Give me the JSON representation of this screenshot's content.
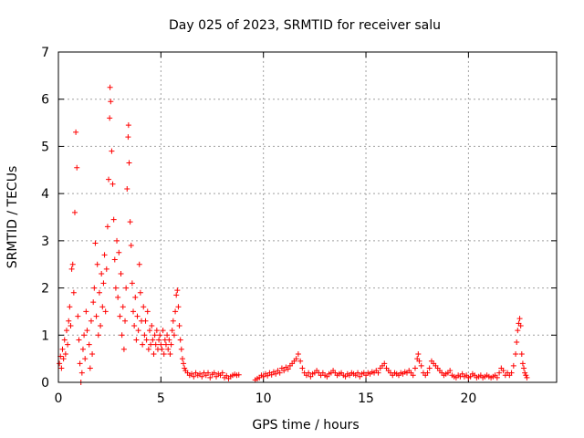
{
  "chart_data": {
    "type": "scatter",
    "title": "Day 025 of 2023, SRMTID for receiver salu",
    "xlabel": "GPS time / hours",
    "ylabel": "SRMTID / TECUs",
    "xlim": [
      0,
      24.3
    ],
    "ylim": [
      0,
      7
    ],
    "xticks": [
      0,
      5,
      10,
      15,
      20
    ],
    "yticks": [
      0,
      1,
      2,
      3,
      4,
      5,
      6,
      7
    ],
    "grid": true,
    "marker": "+",
    "color": "#ff0000",
    "series": [
      {
        "name": "SRMTID",
        "points": [
          [
            0.05,
            0.4
          ],
          [
            0.1,
            0.55
          ],
          [
            0.15,
            0.3
          ],
          [
            0.2,
            0.7
          ],
          [
            0.25,
            0.5
          ],
          [
            0.3,
            0.9
          ],
          [
            0.35,
            0.6
          ],
          [
            0.4,
            1.1
          ],
          [
            0.45,
            0.8
          ],
          [
            0.5,
            1.3
          ],
          [
            0.55,
            1.6
          ],
          [
            0.6,
            1.2
          ],
          [
            0.65,
            2.4
          ],
          [
            0.7,
            2.5
          ],
          [
            0.75,
            1.9
          ],
          [
            0.8,
            3.6
          ],
          [
            0.85,
            5.3
          ],
          [
            0.9,
            4.55
          ],
          [
            0.95,
            1.4
          ],
          [
            1.0,
            0.9
          ],
          [
            1.05,
            0.4
          ],
          [
            1.1,
            0.0
          ],
          [
            1.15,
            0.2
          ],
          [
            1.2,
            0.7
          ],
          [
            1.25,
            1.0
          ],
          [
            1.3,
            0.5
          ],
          [
            1.35,
            1.5
          ],
          [
            1.4,
            1.1
          ],
          [
            1.5,
            0.8
          ],
          [
            1.55,
            0.3
          ],
          [
            1.6,
            1.3
          ],
          [
            1.65,
            0.6
          ],
          [
            1.7,
            1.7
          ],
          [
            1.75,
            2.0
          ],
          [
            1.8,
            2.95
          ],
          [
            1.85,
            1.4
          ],
          [
            1.9,
            2.5
          ],
          [
            1.95,
            1.0
          ],
          [
            2.0,
            1.9
          ],
          [
            2.05,
            1.2
          ],
          [
            2.1,
            2.3
          ],
          [
            2.15,
            1.6
          ],
          [
            2.2,
            2.1
          ],
          [
            2.25,
            2.7
          ],
          [
            2.3,
            1.5
          ],
          [
            2.35,
            2.4
          ],
          [
            2.4,
            3.3
          ],
          [
            2.45,
            4.3
          ],
          [
            2.5,
            5.6
          ],
          [
            2.52,
            6.25
          ],
          [
            2.55,
            5.95
          ],
          [
            2.6,
            4.9
          ],
          [
            2.65,
            4.2
          ],
          [
            2.7,
            3.45
          ],
          [
            2.75,
            2.6
          ],
          [
            2.8,
            2.0
          ],
          [
            2.85,
            3.0
          ],
          [
            2.9,
            1.8
          ],
          [
            2.95,
            2.75
          ],
          [
            3.0,
            1.4
          ],
          [
            3.05,
            2.3
          ],
          [
            3.1,
            1.0
          ],
          [
            3.15,
            1.6
          ],
          [
            3.2,
            0.7
          ],
          [
            3.25,
            1.3
          ],
          [
            3.3,
            2.0
          ],
          [
            3.35,
            4.1
          ],
          [
            3.4,
            5.2
          ],
          [
            3.42,
            5.45
          ],
          [
            3.45,
            4.65
          ],
          [
            3.5,
            3.4
          ],
          [
            3.55,
            2.9
          ],
          [
            3.6,
            2.1
          ],
          [
            3.65,
            1.5
          ],
          [
            3.7,
            1.2
          ],
          [
            3.75,
            1.8
          ],
          [
            3.8,
            0.9
          ],
          [
            3.85,
            1.4
          ],
          [
            3.9,
            1.1
          ],
          [
            3.95,
            2.5
          ],
          [
            4.0,
            1.9
          ],
          [
            4.05,
            1.3
          ],
          [
            4.1,
            0.8
          ],
          [
            4.15,
            1.6
          ],
          [
            4.2,
            1.0
          ],
          [
            4.25,
            1.3
          ],
          [
            4.3,
            0.9
          ],
          [
            4.35,
            1.5
          ],
          [
            4.4,
            0.7
          ],
          [
            4.45,
            1.1
          ],
          [
            4.5,
            0.8
          ],
          [
            4.55,
            1.2
          ],
          [
            4.6,
            0.9
          ],
          [
            4.65,
            0.6
          ],
          [
            4.7,
            1.0
          ],
          [
            4.75,
            0.8
          ],
          [
            4.8,
            1.1
          ],
          [
            4.85,
            0.7
          ],
          [
            4.9,
            0.9
          ],
          [
            4.95,
            1.0
          ],
          [
            5.0,
            0.8
          ],
          [
            5.05,
            0.7
          ],
          [
            5.1,
            1.1
          ],
          [
            5.15,
            0.6
          ],
          [
            5.2,
            0.9
          ],
          [
            5.25,
            0.8
          ],
          [
            5.3,
            1.0
          ],
          [
            5.35,
            0.7
          ],
          [
            5.4,
            0.9
          ],
          [
            5.45,
            0.6
          ],
          [
            5.5,
            0.8
          ],
          [
            5.55,
            1.1
          ],
          [
            5.6,
            1.3
          ],
          [
            5.65,
            1.0
          ],
          [
            5.7,
            1.5
          ],
          [
            5.75,
            1.85
          ],
          [
            5.8,
            1.95
          ],
          [
            5.85,
            1.6
          ],
          [
            5.9,
            1.2
          ],
          [
            5.95,
            0.9
          ],
          [
            6.0,
            0.7
          ],
          [
            6.05,
            0.5
          ],
          [
            6.1,
            0.4
          ],
          [
            6.15,
            0.3
          ],
          [
            6.2,
            0.25
          ],
          [
            6.3,
            0.2
          ],
          [
            6.4,
            0.15
          ],
          [
            6.5,
            0.18
          ],
          [
            6.6,
            0.12
          ],
          [
            6.7,
            0.2
          ],
          [
            6.8,
            0.15
          ],
          [
            6.9,
            0.18
          ],
          [
            7.0,
            0.12
          ],
          [
            7.1,
            0.2
          ],
          [
            7.2,
            0.15
          ],
          [
            7.3,
            0.2
          ],
          [
            7.4,
            0.1
          ],
          [
            7.5,
            0.17
          ],
          [
            7.6,
            0.2
          ],
          [
            7.7,
            0.12
          ],
          [
            7.8,
            0.18
          ],
          [
            7.9,
            0.15
          ],
          [
            8.0,
            0.2
          ],
          [
            8.1,
            0.1
          ],
          [
            8.2,
            0.14
          ],
          [
            8.3,
            0.08
          ],
          [
            8.4,
            0.12
          ],
          [
            8.5,
            0.15
          ],
          [
            8.6,
            0.17
          ],
          [
            8.7,
            0.15
          ],
          [
            8.8,
            0.16
          ],
          [
            9.6,
            0.05
          ],
          [
            9.7,
            0.08
          ],
          [
            9.8,
            0.1
          ],
          [
            9.9,
            0.15
          ],
          [
            10.0,
            0.12
          ],
          [
            10.1,
            0.18
          ],
          [
            10.2,
            0.14
          ],
          [
            10.3,
            0.2
          ],
          [
            10.4,
            0.16
          ],
          [
            10.5,
            0.22
          ],
          [
            10.6,
            0.18
          ],
          [
            10.7,
            0.25
          ],
          [
            10.8,
            0.2
          ],
          [
            10.9,
            0.3
          ],
          [
            11.0,
            0.25
          ],
          [
            11.1,
            0.32
          ],
          [
            11.2,
            0.28
          ],
          [
            11.3,
            0.35
          ],
          [
            11.4,
            0.4
          ],
          [
            11.5,
            0.45
          ],
          [
            11.6,
            0.5
          ],
          [
            11.7,
            0.6
          ],
          [
            11.8,
            0.45
          ],
          [
            11.9,
            0.3
          ],
          [
            12.0,
            0.2
          ],
          [
            12.1,
            0.15
          ],
          [
            12.2,
            0.2
          ],
          [
            12.3,
            0.12
          ],
          [
            12.4,
            0.18
          ],
          [
            12.5,
            0.2
          ],
          [
            12.6,
            0.25
          ],
          [
            12.7,
            0.2
          ],
          [
            12.8,
            0.15
          ],
          [
            12.9,
            0.2
          ],
          [
            13.0,
            0.15
          ],
          [
            13.1,
            0.12
          ],
          [
            13.2,
            0.18
          ],
          [
            13.3,
            0.2
          ],
          [
            13.4,
            0.25
          ],
          [
            13.5,
            0.2
          ],
          [
            13.6,
            0.15
          ],
          [
            13.7,
            0.18
          ],
          [
            13.8,
            0.2
          ],
          [
            13.9,
            0.15
          ],
          [
            14.0,
            0.12
          ],
          [
            14.1,
            0.18
          ],
          [
            14.2,
            0.15
          ],
          [
            14.3,
            0.2
          ],
          [
            14.4,
            0.18
          ],
          [
            14.5,
            0.15
          ],
          [
            14.6,
            0.2
          ],
          [
            14.7,
            0.12
          ],
          [
            14.8,
            0.18
          ],
          [
            14.9,
            0.2
          ],
          [
            15.0,
            0.15
          ],
          [
            15.1,
            0.2
          ],
          [
            15.2,
            0.18
          ],
          [
            15.3,
            0.22
          ],
          [
            15.4,
            0.2
          ],
          [
            15.5,
            0.25
          ],
          [
            15.6,
            0.2
          ],
          [
            15.7,
            0.3
          ],
          [
            15.8,
            0.35
          ],
          [
            15.9,
            0.4
          ],
          [
            16.0,
            0.3
          ],
          [
            16.1,
            0.25
          ],
          [
            16.2,
            0.2
          ],
          [
            16.3,
            0.15
          ],
          [
            16.4,
            0.2
          ],
          [
            16.5,
            0.18
          ],
          [
            16.6,
            0.15
          ],
          [
            16.7,
            0.2
          ],
          [
            16.8,
            0.18
          ],
          [
            16.9,
            0.22
          ],
          [
            17.0,
            0.2
          ],
          [
            17.1,
            0.25
          ],
          [
            17.2,
            0.2
          ],
          [
            17.3,
            0.15
          ],
          [
            17.4,
            0.3
          ],
          [
            17.5,
            0.5
          ],
          [
            17.55,
            0.6
          ],
          [
            17.6,
            0.45
          ],
          [
            17.7,
            0.35
          ],
          [
            17.8,
            0.2
          ],
          [
            17.9,
            0.15
          ],
          [
            18.0,
            0.2
          ],
          [
            18.1,
            0.3
          ],
          [
            18.2,
            0.45
          ],
          [
            18.3,
            0.4
          ],
          [
            18.4,
            0.35
          ],
          [
            18.5,
            0.3
          ],
          [
            18.6,
            0.25
          ],
          [
            18.7,
            0.2
          ],
          [
            18.8,
            0.15
          ],
          [
            18.9,
            0.18
          ],
          [
            19.0,
            0.2
          ],
          [
            19.1,
            0.25
          ],
          [
            19.2,
            0.15
          ],
          [
            19.3,
            0.12
          ],
          [
            19.4,
            0.1
          ],
          [
            19.5,
            0.15
          ],
          [
            19.6,
            0.12
          ],
          [
            19.7,
            0.18
          ],
          [
            19.8,
            0.12
          ],
          [
            19.9,
            0.15
          ],
          [
            20.0,
            0.1
          ],
          [
            20.1,
            0.12
          ],
          [
            20.2,
            0.18
          ],
          [
            20.3,
            0.15
          ],
          [
            20.4,
            0.1
          ],
          [
            20.5,
            0.12
          ],
          [
            20.6,
            0.15
          ],
          [
            20.7,
            0.1
          ],
          [
            20.8,
            0.12
          ],
          [
            20.9,
            0.15
          ],
          [
            21.0,
            0.12
          ],
          [
            21.1,
            0.1
          ],
          [
            21.2,
            0.12
          ],
          [
            21.3,
            0.15
          ],
          [
            21.4,
            0.1
          ],
          [
            21.5,
            0.2
          ],
          [
            21.6,
            0.3
          ],
          [
            21.7,
            0.25
          ],
          [
            21.8,
            0.15
          ],
          [
            21.9,
            0.2
          ],
          [
            22.0,
            0.15
          ],
          [
            22.1,
            0.2
          ],
          [
            22.2,
            0.35
          ],
          [
            22.3,
            0.6
          ],
          [
            22.35,
            0.85
          ],
          [
            22.4,
            1.1
          ],
          [
            22.45,
            1.25
          ],
          [
            22.5,
            1.35
          ],
          [
            22.55,
            1.2
          ],
          [
            22.6,
            0.6
          ],
          [
            22.65,
            0.4
          ],
          [
            22.7,
            0.3
          ],
          [
            22.75,
            0.2
          ],
          [
            22.8,
            0.15
          ],
          [
            22.85,
            0.1
          ]
        ]
      }
    ]
  }
}
